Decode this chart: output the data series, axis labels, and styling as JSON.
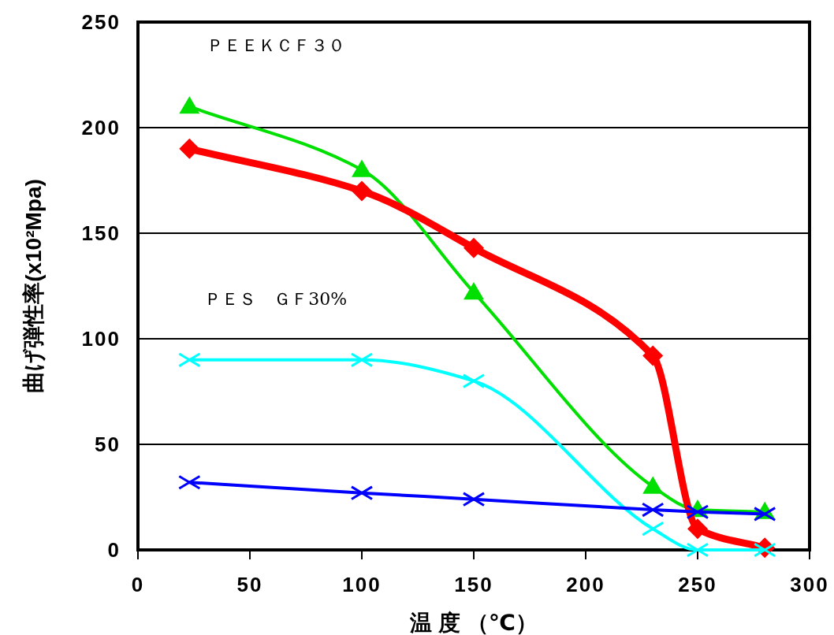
{
  "chart_data": {
    "type": "line",
    "xlabel": "温 度 （℃）",
    "ylabel": "曲げ弾性率(x10²Mpa)",
    "x": [
      23,
      100,
      150,
      230,
      250,
      280
    ],
    "xlim": [
      0,
      300
    ],
    "xticks": [
      0,
      50,
      100,
      150,
      200,
      250,
      300
    ],
    "ylim": [
      0,
      250
    ],
    "yticks": [
      0,
      50,
      100,
      150,
      200,
      250
    ],
    "grid": "y",
    "legend": false,
    "series": [
      {
        "name": "ＰＥＥＫＣＦ３０",
        "color": "#00e000",
        "marker": "triangle",
        "values": [
          210,
          180,
          122,
          30,
          19,
          18
        ]
      },
      {
        "color": "#ff0000",
        "marker": "diamond",
        "values": [
          190,
          170,
          143,
          92,
          10,
          1
        ]
      },
      {
        "name": "ＰＥＳ　ＧＦ30%",
        "color": "#00ffff",
        "marker": "cross",
        "values": [
          90,
          90,
          80,
          10,
          0,
          0
        ]
      },
      {
        "color": "#0000ff",
        "marker": "cross",
        "values": [
          32,
          27,
          24,
          19,
          18,
          17
        ]
      }
    ]
  }
}
